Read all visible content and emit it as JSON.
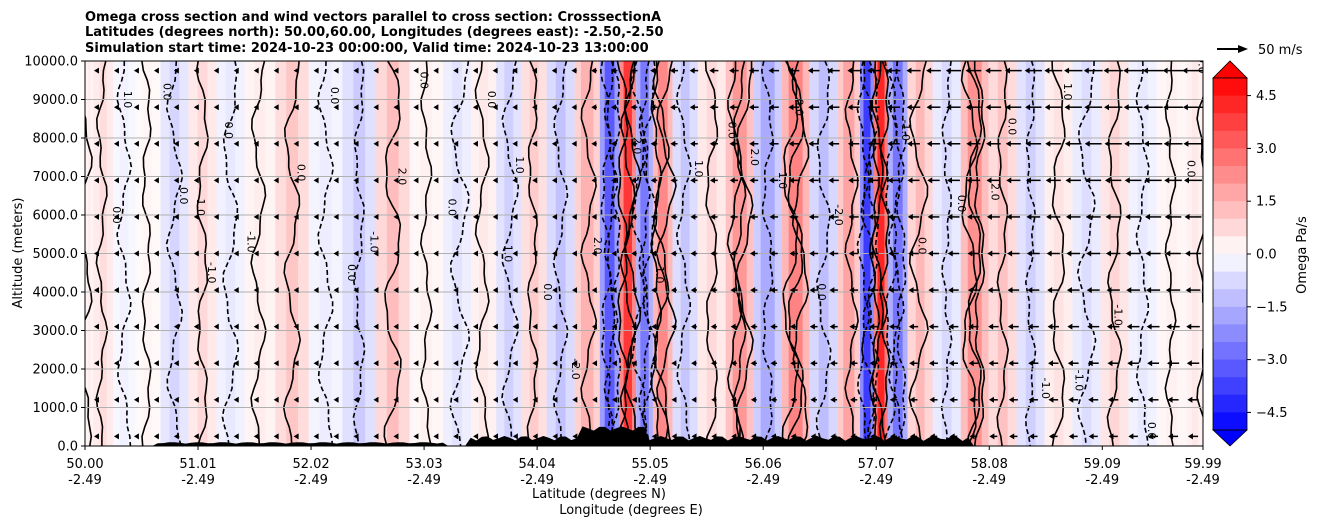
{
  "chart_data": {
    "type": "heatmap",
    "title_lines": [
      "Omega cross section and wind vectors parallel to cross section: CrosssectionA",
      "Latitudes (degrees north): 50.00,60.00, Longitudes (degrees east): -2.50,-2.50",
      "Simulation start time: 2024-10-23 00:00:00, Valid time: 2024-10-23 13:00:00"
    ],
    "ylabel": "Altitude (meters)",
    "xlabel_lines": [
      "Latitude (degrees N)",
      "Longitude (degrees E)"
    ],
    "ylim": [
      0,
      10000
    ],
    "yticks": [
      "0.0",
      "1000.0",
      "2000.0",
      "3000.0",
      "4000.0",
      "5000.0",
      "6000.0",
      "7000.0",
      "8000.0",
      "9000.0",
      "10000.0"
    ],
    "xticks": [
      {
        "lat": "50.00",
        "lon": "-2.49"
      },
      {
        "lat": "51.01",
        "lon": "-2.49"
      },
      {
        "lat": "52.02",
        "lon": "-2.49"
      },
      {
        "lat": "53.03",
        "lon": "-2.49"
      },
      {
        "lat": "54.04",
        "lon": "-2.49"
      },
      {
        "lat": "55.05",
        "lon": "-2.49"
      },
      {
        "lat": "56.06",
        "lon": "-2.49"
      },
      {
        "lat": "57.07",
        "lon": "-2.49"
      },
      {
        "lat": "58.08",
        "lon": "-2.49"
      },
      {
        "lat": "59.09",
        "lon": "-2.49"
      },
      {
        "lat": "59.99",
        "lon": "-2.49"
      }
    ],
    "grid": "horizontal",
    "colorbar": {
      "label": "Omega Pa/s",
      "range": [
        -5.0,
        5.0
      ],
      "ticks": [
        "4.5",
        "3.0",
        "1.5",
        "0.0",
        "−1.5",
        "−3.0",
        "−4.5"
      ],
      "extend": "both",
      "colormap": "bwr"
    },
    "quiver_key": {
      "label": "50 m/s"
    },
    "columns": [
      {
        "lat": 50.0,
        "omega": 0.4
      },
      {
        "lat": 50.15,
        "omega": 0.7
      },
      {
        "lat": 50.35,
        "omega": -0.3
      },
      {
        "lat": 50.55,
        "omega": 0.2
      },
      {
        "lat": 50.8,
        "omega": -0.9
      },
      {
        "lat": 51.05,
        "omega": 0.8
      },
      {
        "lat": 51.3,
        "omega": -0.5
      },
      {
        "lat": 51.55,
        "omega": 0.4
      },
      {
        "lat": 51.85,
        "omega": 1.2
      },
      {
        "lat": 52.15,
        "omega": -0.4
      },
      {
        "lat": 52.45,
        "omega": -1.1
      },
      {
        "lat": 52.75,
        "omega": 1.4
      },
      {
        "lat": 53.05,
        "omega": 0.3
      },
      {
        "lat": 53.35,
        "omega": -0.6
      },
      {
        "lat": 53.55,
        "omega": 0.5
      },
      {
        "lat": 53.8,
        "omega": -1.0
      },
      {
        "lat": 54.0,
        "omega": 1.1
      },
      {
        "lat": 54.25,
        "omega": -1.3
      },
      {
        "lat": 54.5,
        "omega": 1.6
      },
      {
        "lat": 54.7,
        "omega": -3.5
      },
      {
        "lat": 54.85,
        "omega": 4.2
      },
      {
        "lat": 55.0,
        "omega": -2.8
      },
      {
        "lat": 55.15,
        "omega": 2.5
      },
      {
        "lat": 55.35,
        "omega": -1.2
      },
      {
        "lat": 55.6,
        "omega": 0.8
      },
      {
        "lat": 55.85,
        "omega": 2.2
      },
      {
        "lat": 56.1,
        "omega": -1.8
      },
      {
        "lat": 56.35,
        "omega": 2.6
      },
      {
        "lat": 56.6,
        "omega": -1.4
      },
      {
        "lat": 56.85,
        "omega": 1.9
      },
      {
        "lat": 57.0,
        "omega": -4.1
      },
      {
        "lat": 57.1,
        "omega": 4.6
      },
      {
        "lat": 57.25,
        "omega": -2.9
      },
      {
        "lat": 57.45,
        "omega": 1.5
      },
      {
        "lat": 57.7,
        "omega": -0.8
      },
      {
        "lat": 57.95,
        "omega": 2.3
      },
      {
        "lat": 58.2,
        "omega": 1.3
      },
      {
        "lat": 58.45,
        "omega": -1.0
      },
      {
        "lat": 58.7,
        "omega": 0.6
      },
      {
        "lat": 58.95,
        "omega": -0.7
      },
      {
        "lat": 59.2,
        "omega": 0.9
      },
      {
        "lat": 59.45,
        "omega": -0.5
      },
      {
        "lat": 59.7,
        "omega": 0.3
      },
      {
        "lat": 59.99,
        "omega": 0.5
      }
    ],
    "contour_labels": [
      {
        "lat": 50.25,
        "alt": 6000,
        "text": "0.0"
      },
      {
        "lat": 50.35,
        "alt": 9000,
        "text": "1.0"
      },
      {
        "lat": 50.7,
        "alt": 9200,
        "text": "0.0"
      },
      {
        "lat": 50.85,
        "alt": 6500,
        "text": "0.0"
      },
      {
        "lat": 51.0,
        "alt": 6200,
        "text": "1.0"
      },
      {
        "lat": 51.1,
        "alt": 4500,
        "text": "-1.0"
      },
      {
        "lat": 51.25,
        "alt": 8200,
        "text": "0.0"
      },
      {
        "lat": 51.45,
        "alt": 5300,
        "text": "-1.0"
      },
      {
        "lat": 51.9,
        "alt": 7100,
        "text": "0.0"
      },
      {
        "lat": 52.2,
        "alt": 9100,
        "text": "0.0"
      },
      {
        "lat": 52.35,
        "alt": 4500,
        "text": "0.0"
      },
      {
        "lat": 52.55,
        "alt": 5300,
        "text": "-1.0"
      },
      {
        "lat": 52.8,
        "alt": 7000,
        "text": "2.0"
      },
      {
        "lat": 53.0,
        "alt": 9500,
        "text": "0.0"
      },
      {
        "lat": 53.25,
        "alt": 6200,
        "text": "0.0"
      },
      {
        "lat": 53.6,
        "alt": 9000,
        "text": "0.0"
      },
      {
        "lat": 53.75,
        "alt": 5000,
        "text": "1.0"
      },
      {
        "lat": 53.85,
        "alt": 7300,
        "text": "1.0"
      },
      {
        "lat": 54.1,
        "alt": 4000,
        "text": "0.0"
      },
      {
        "lat": 54.35,
        "alt": 2000,
        "text": "-2.0"
      },
      {
        "lat": 54.55,
        "alt": 5200,
        "text": "2.0"
      },
      {
        "lat": 54.9,
        "alt": 7800,
        "text": "2.0"
      },
      {
        "lat": 55.1,
        "alt": 4500,
        "text": "-1.0"
      },
      {
        "lat": 55.45,
        "alt": 7200,
        "text": "1.0"
      },
      {
        "lat": 55.75,
        "alt": 8200,
        "text": "0.0"
      },
      {
        "lat": 55.95,
        "alt": 7500,
        "text": "2.0"
      },
      {
        "lat": 56.2,
        "alt": 6900,
        "text": "1.0"
      },
      {
        "lat": 56.35,
        "alt": 8800,
        "text": "0.0"
      },
      {
        "lat": 56.55,
        "alt": 4000,
        "text": "0.0"
      },
      {
        "lat": 56.7,
        "alt": 6000,
        "text": "-2.0"
      },
      {
        "lat": 57.3,
        "alt": 8200,
        "text": "-1.0"
      },
      {
        "lat": 57.45,
        "alt": 5200,
        "text": "0.0"
      },
      {
        "lat": 57.8,
        "alt": 6300,
        "text": "0.0"
      },
      {
        "lat": 58.1,
        "alt": 6600,
        "text": "2.0"
      },
      {
        "lat": 58.25,
        "alt": 8300,
        "text": "0.0"
      },
      {
        "lat": 58.55,
        "alt": 1500,
        "text": "-1.0"
      },
      {
        "lat": 58.75,
        "alt": 9200,
        "text": "1.0"
      },
      {
        "lat": 58.85,
        "alt": 1700,
        "text": "-1.0"
      },
      {
        "lat": 59.2,
        "alt": 3400,
        "text": "-1.0"
      },
      {
        "lat": 59.5,
        "alt": 400,
        "text": "0.0"
      },
      {
        "lat": 59.85,
        "alt": 7200,
        "text": "0.0"
      },
      {
        "lat": 59.95,
        "alt": 9900,
        "text": "0.0"
      }
    ]
  }
}
